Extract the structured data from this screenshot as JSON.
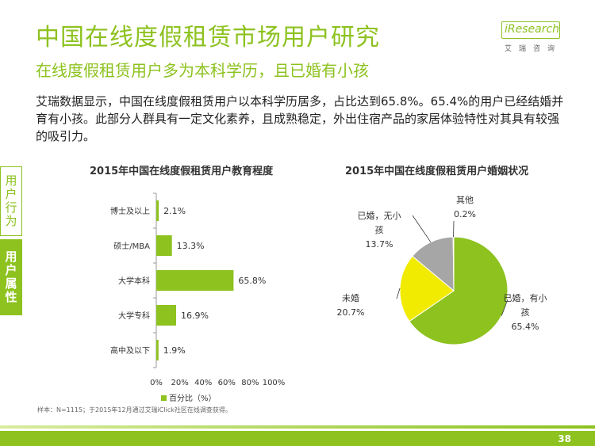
{
  "header": {
    "title": "中国在线度假租赁市场用户研究",
    "subtitle": "在线度假租赁用户多为本科学历，且已婚有小孩"
  },
  "logo": {
    "brand": "iResearch",
    "cn": "艾瑞咨询"
  },
  "summary": "艾瑞数据显示，中国在线度假租赁用户以本科学历居多，占比达到65.8%。65.4%的用户已经结婚并育有小孩。此部分人群具有一定文化素养，且成熟稳定，外出住宿产品的家居体验特性对其具有较强的吸引力。",
  "side_tabs": [
    "用户行为",
    "用户属性"
  ],
  "colors": {
    "accent": "#8dc21f",
    "yellow": "#f0eb00",
    "gray": "#a6a6a6"
  },
  "chart_data": [
    {
      "type": "bar",
      "orientation": "horizontal",
      "title": "2015年中国在线度假租赁用户教育程度",
      "categories": [
        "博士及以上",
        "硕士/MBA",
        "大学本科",
        "大学专科",
        "高中及以下"
      ],
      "values": [
        2.1,
        13.3,
        65.8,
        16.9,
        1.9
      ],
      "value_labels": [
        "2.1%",
        "13.3%",
        "65.8%",
        "16.9%",
        "1.9%"
      ],
      "xlim": [
        0,
        100
      ],
      "x_ticks": [
        "0%",
        "20%",
        "40%",
        "60%",
        "80%",
        "100%"
      ],
      "series": [
        {
          "name": "百分比（%）",
          "values": [
            2.1,
            13.3,
            65.8,
            16.9,
            1.9
          ]
        }
      ],
      "legend": "bottom",
      "grid": false
    },
    {
      "type": "pie",
      "title": "2015年中国在线度假租赁用户婚姻状况",
      "slices": [
        {
          "label": "已婚，有小孩",
          "value": 65.4,
          "value_label": "65.4%"
        },
        {
          "label": "未婚",
          "value": 20.7,
          "value_label": "20.7%"
        },
        {
          "label": "已婚，无小孩",
          "value": 13.7,
          "value_label": "13.7%"
        },
        {
          "label": "其他",
          "value": 0.2,
          "value_label": "0.2%"
        }
      ]
    }
  ],
  "note": "样本：N=1115；于2015年12月通过艾瑞iClick社区在线调查获得。",
  "page_number": "38"
}
